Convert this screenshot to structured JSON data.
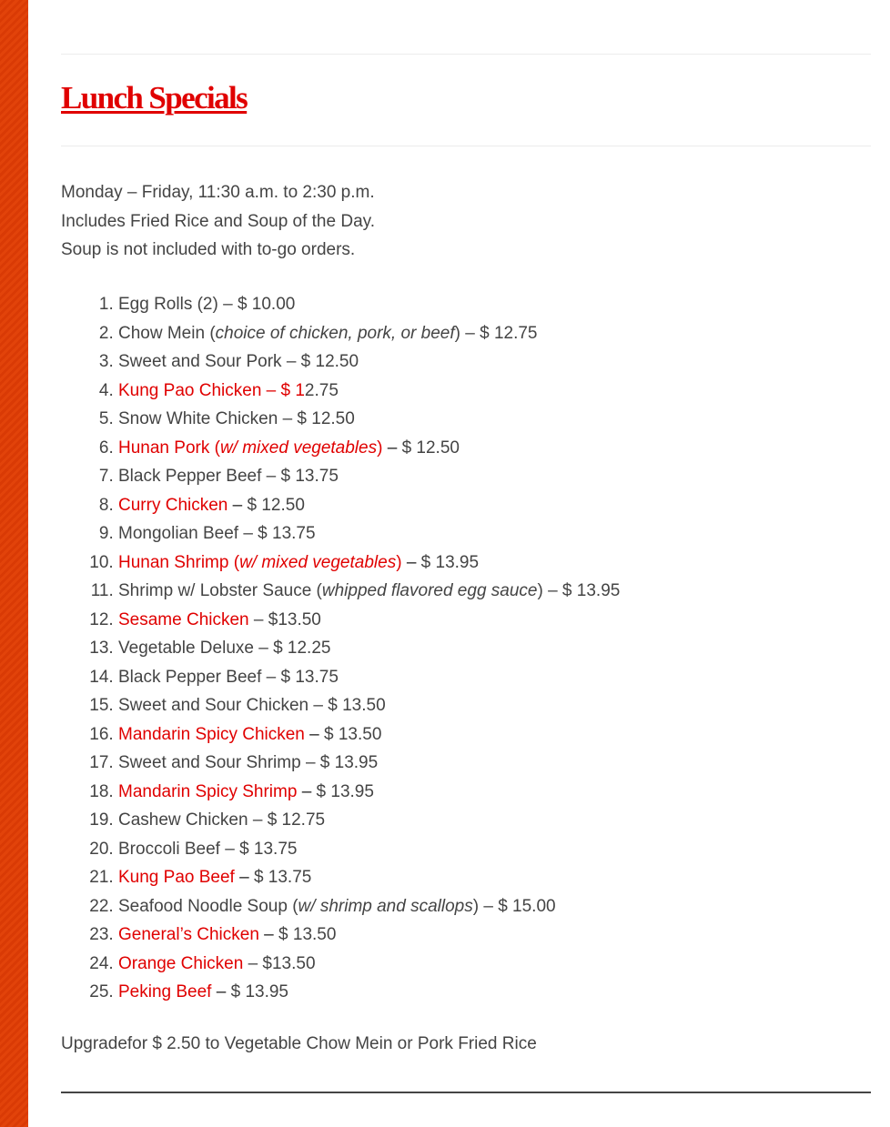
{
  "colors": {
    "accent": "#e00000",
    "stripe": "#e2430a",
    "text": "#444444"
  },
  "title": "Lunch Specials",
  "intro": [
    "Monday – Friday, 11:30 a.m. to 2:30 p.m.",
    "Includes Fried Rice and Soup of the Day.",
    "Soup is not included with to-go orders."
  ],
  "items": [
    [
      {
        "t": "Egg Rolls (2) – $ 10.00"
      }
    ],
    [
      {
        "t": "Chow Mein ("
      },
      {
        "t": "choice of chicken, pork, or beef",
        "s": "it"
      },
      {
        "t": ") – $ 12.75"
      }
    ],
    [
      {
        "t": "Sweet and Sour Pork – $ 12.50"
      }
    ],
    [
      {
        "t": "Kung Pao Chicken – $ 1",
        "s": "red"
      },
      {
        "t": "2.75"
      }
    ],
    [
      {
        "t": "Snow White Chicken – $ 12.50"
      }
    ],
    [
      {
        "t": "Hunan Pork (",
        "s": "red"
      },
      {
        "t": "w/ mixed vegetables",
        "s": "red it"
      },
      {
        "t": ")",
        "s": "red"
      },
      {
        "t": " – ",
        "s": "dk"
      },
      {
        "t": "$ 12.50"
      }
    ],
    [
      {
        "t": "Black Pepper Beef – $ 13.75"
      }
    ],
    [
      {
        "t": "Curry Chicken",
        "s": "red"
      },
      {
        "t": " – ",
        "s": "dk"
      },
      {
        "t": "$ 12.50"
      }
    ],
    [
      {
        "t": "Mongolian Beef – $ 13.75"
      }
    ],
    [
      {
        "t": "Hunan Shrimp (",
        "s": "red"
      },
      {
        "t": "w/ mixed vegetables",
        "s": "red it"
      },
      {
        "t": ")",
        "s": "red"
      },
      {
        "t": " – ",
        "s": "dk"
      },
      {
        "t": "$ 13.95"
      }
    ],
    [
      {
        "t": "Shrimp w/ Lobster Sauce ("
      },
      {
        "t": "whipped flavored egg sauce",
        "s": "it"
      },
      {
        "t": ") – $ 13.95"
      }
    ],
    [
      {
        "t": "Sesame Chicken",
        "s": "red"
      },
      {
        "t": "  – $13.50"
      }
    ],
    [
      {
        "t": "Vegetable Deluxe – $ 12.25"
      }
    ],
    [
      {
        "t": "Black Pepper Beef – $ 13.75"
      }
    ],
    [
      {
        "t": "Sweet and Sour Chicken – $ 13.50"
      }
    ],
    [
      {
        "t": "Mandarin Spicy Chicken",
        "s": "red"
      },
      {
        "t": " – ",
        "s": "dk"
      },
      {
        "t": "$ 13.50"
      }
    ],
    [
      {
        "t": "Sweet and Sour Shrimp – $ 13.95"
      }
    ],
    [
      {
        "t": "Mandarin Spicy Shrimp",
        "s": "red"
      },
      {
        "t": " – ",
        "s": "dk"
      },
      {
        "t": "$ 13.95"
      }
    ],
    [
      {
        "t": "Cashew Chicken – $ 12.75"
      }
    ],
    [
      {
        "t": "Broccoli Beef – $ 13.75"
      }
    ],
    [
      {
        "t": "Kung Pao Beef",
        "s": "red"
      },
      {
        "t": " – ",
        "s": "dk"
      },
      {
        "t": "$ 13.75"
      }
    ],
    [
      {
        "t": "Seafood Noodle Soup ("
      },
      {
        "t": "w/ shrimp and scallops",
        "s": "it"
      },
      {
        "t": ") – $ 15.00"
      }
    ],
    [
      {
        "t": "General’s Chicken",
        "s": "red"
      },
      {
        "t": " – ",
        "s": "dk"
      },
      {
        "t": "$ 13.50"
      }
    ],
    [
      {
        "t": "Orange Chicken",
        "s": "red"
      },
      {
        "t": " – $13.50"
      }
    ],
    [
      {
        "t": "Peking Beef",
        "s": "red"
      },
      {
        "t": " – ",
        "s": "dk"
      },
      {
        "t": "$ 13.95"
      }
    ]
  ],
  "upgrade": "Upgradefor $ 2.50 to Vegetable Chow Mein or Pork Fried Rice"
}
